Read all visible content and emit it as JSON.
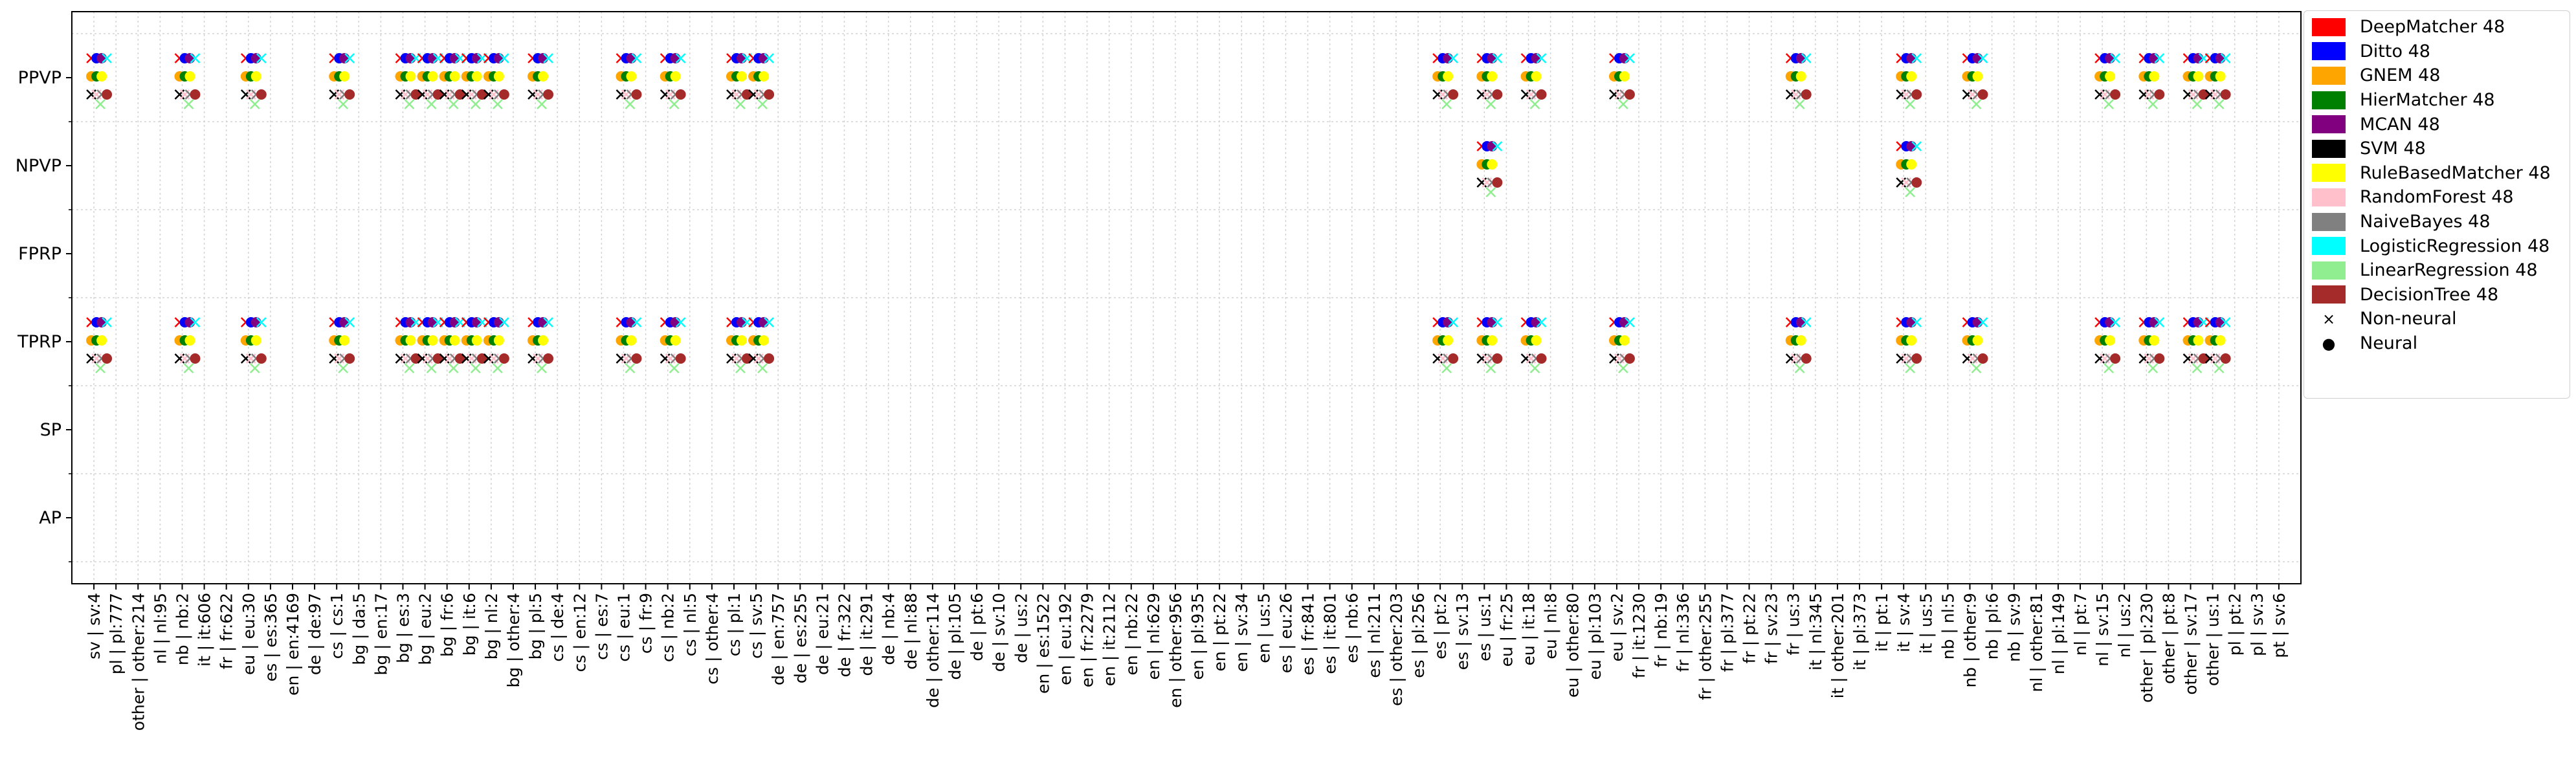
{
  "chart_data": {
    "type": "scatter",
    "title": "",
    "xlabel": "",
    "ylabel": "",
    "grid": true,
    "legend_placement": "right",
    "y_categories": [
      "PPVP",
      "NPVP",
      "FPRP",
      "TPRP",
      "SP",
      "AP"
    ],
    "x_categories": [
      "sv | sv:4",
      "pl | pl:777",
      "other | other:214",
      "nl | nl:95",
      "nb | nb:2",
      "it | it:606",
      "fr | fr:622",
      "eu | eu:30",
      "es | es:365",
      "en | en:4169",
      "de | de:97",
      "cs | cs:1",
      "bg | da:5",
      "bg | en:17",
      "bg | es:3",
      "bg | eu:2",
      "bg | fr:6",
      "bg | it:6",
      "bg | nl:2",
      "bg | other:4",
      "bg | pl:5",
      "cs | de:4",
      "cs | en:12",
      "cs | es:7",
      "cs | eu:1",
      "cs | fr:9",
      "cs | nb:2",
      "cs | nl:5",
      "cs | other:4",
      "cs | pl:1",
      "cs | sv:5",
      "de | en:757",
      "de | es:255",
      "de | eu:21",
      "de | fr:322",
      "de | it:291",
      "de | nb:4",
      "de | nl:88",
      "de | other:114",
      "de | pl:105",
      "de | pt:6",
      "de | sv:10",
      "de | us:2",
      "en | es:1522",
      "en | eu:192",
      "en | fr:2279",
      "en | it:2112",
      "en | nb:22",
      "en | nl:629",
      "en | other:956",
      "en | pl:935",
      "en | pt:22",
      "en | sv:34",
      "en | us:5",
      "es | eu:26",
      "es | fr:841",
      "es | it:801",
      "es | nb:6",
      "es | nl:211",
      "es | other:203",
      "es | pl:256",
      "es | pt:2",
      "es | sv:13",
      "es | us:1",
      "eu | fr:25",
      "eu | it:18",
      "eu | nl:8",
      "eu | other:80",
      "eu | pl:103",
      "eu | sv:2",
      "fr | it:1230",
      "fr | nb:19",
      "fr | nl:336",
      "fr | other:255",
      "fr | pl:377",
      "fr | pt:22",
      "fr | sv:23",
      "fr | us:3",
      "it | nl:345",
      "it | other:201",
      "it | pl:373",
      "it | pt:1",
      "it | sv:4",
      "it | us:5",
      "nb | nl:5",
      "nb | other:9",
      "nb | pl:6",
      "nb | sv:9",
      "nl | other:81",
      "nl | pl:149",
      "nl | pt:7",
      "nl | sv:15",
      "nl | us:2",
      "other | pl:230",
      "other | pt:8",
      "other | sv:17",
      "other | us:1",
      "pl | pt:2",
      "pl | sv:3",
      "pt | sv:6"
    ],
    "highlighted_x": [
      0,
      4,
      7,
      11,
      14,
      15,
      16,
      17,
      18,
      20,
      24,
      26,
      29,
      30,
      61,
      63,
      65,
      69,
      77,
      82,
      85,
      91,
      93,
      95,
      96
    ],
    "highlighted_y": [
      "PPVP",
      "TPRP"
    ],
    "npvp_x": [
      63,
      82
    ],
    "series": [
      {
        "name": "DeepMatcher 48",
        "color": "#ff0000",
        "marker": "x",
        "row": 0
      },
      {
        "name": "Ditto 48",
        "color": "#0000ff",
        "marker": "o",
        "row": 0
      },
      {
        "name": "GNEM 48",
        "color": "#ffa500",
        "marker": "o",
        "row": 1
      },
      {
        "name": "HierMatcher 48",
        "color": "#008000",
        "marker": "o",
        "row": 1
      },
      {
        "name": "MCAN 48",
        "color": "#800080",
        "marker": "o",
        "row": 0
      },
      {
        "name": "SVM 48",
        "color": "#000000",
        "marker": "x",
        "row": 2
      },
      {
        "name": "RuleBasedMatcher 48",
        "color": "#ffff00",
        "marker": "o",
        "row": 1
      },
      {
        "name": "RandomForest 48",
        "color": "#ffc0cb",
        "marker": "x",
        "row": 2
      },
      {
        "name": "NaiveBayes 48",
        "color": "#808080",
        "marker": "x",
        "row": 2
      },
      {
        "name": "LogisticRegression 48",
        "color": "#00ffff",
        "marker": "x",
        "row": 0
      },
      {
        "name": "LinearRegression 48",
        "color": "#90ee90",
        "marker": "x",
        "row": 3
      },
      {
        "name": "DecisionTree 48",
        "color": "#a52a2a",
        "marker": "o",
        "row": 2
      }
    ],
    "marker_legend": [
      {
        "name": "Non-neural",
        "marker": "x"
      },
      {
        "name": "Neural",
        "marker": "o"
      }
    ]
  }
}
